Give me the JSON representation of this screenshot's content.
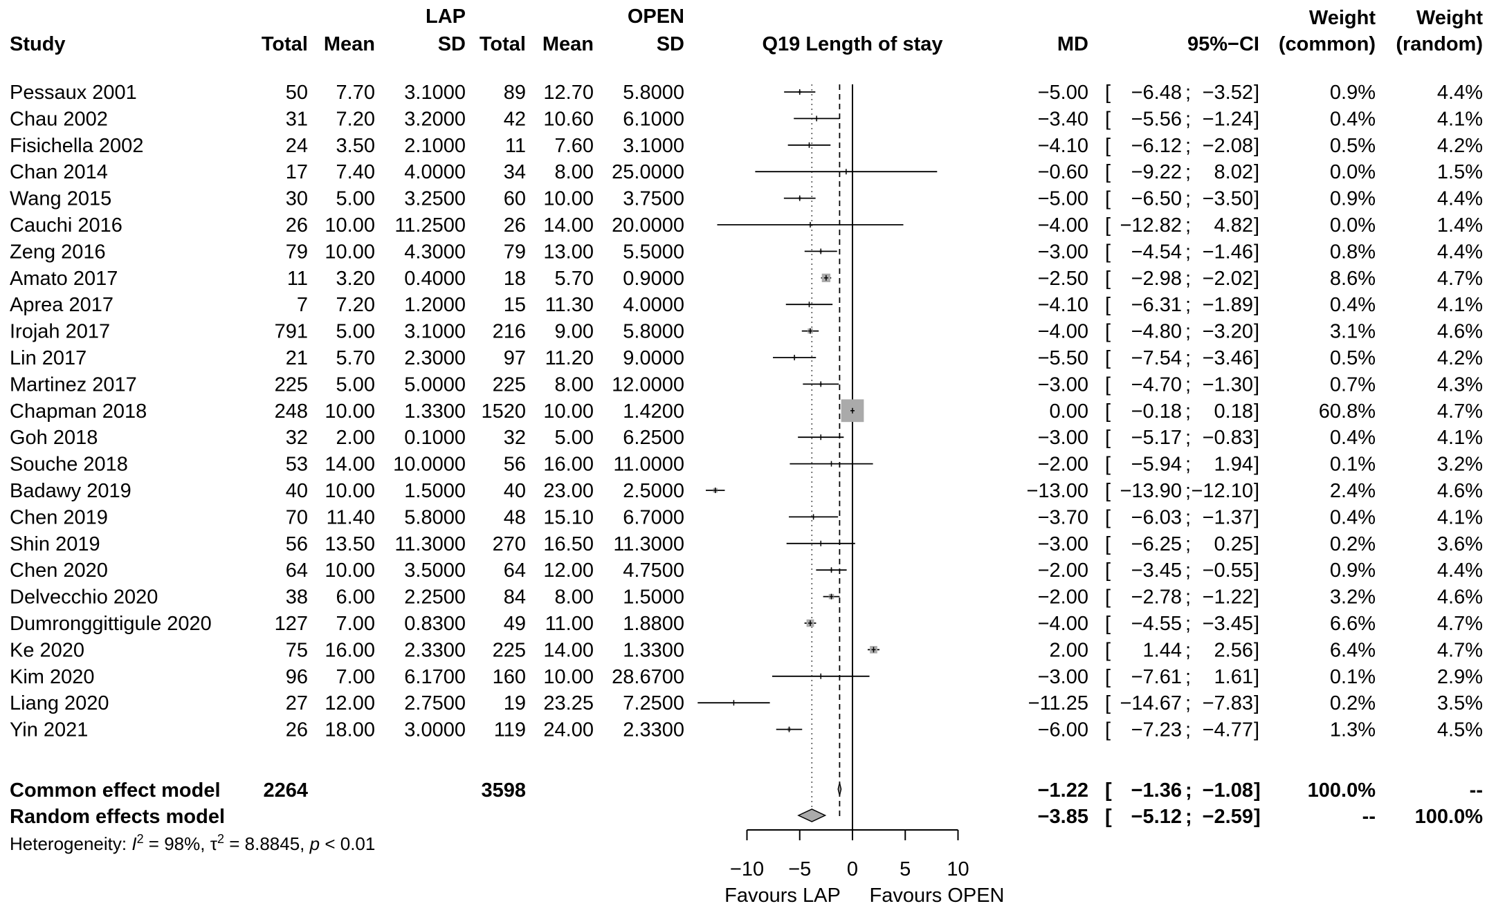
{
  "plot_title": "Q19 Length of stay",
  "headers": {
    "study": "Study",
    "lap": "LAP",
    "open": "OPEN",
    "total": "Total",
    "mean": "Mean",
    "sd": "SD",
    "md": "MD",
    "ci": "95%−CI",
    "weight": "Weight",
    "weight_common": "(common)",
    "weight_random": "(random)"
  },
  "studies": [
    {
      "name": "Pessaux 2001",
      "lap_total": "50",
      "lap_mean": "7.70",
      "lap_sd": "3.1000",
      "open_total": "89",
      "open_mean": "12.70",
      "open_sd": "5.8000",
      "md": "−5.00",
      "ci_lo": "−6.48",
      "ci_hi": "−3.52",
      "w_common": "0.9%",
      "w_random": "4.4%"
    },
    {
      "name": "Chau 2002",
      "lap_total": "31",
      "lap_mean": "7.20",
      "lap_sd": "3.2000",
      "open_total": "42",
      "open_mean": "10.60",
      "open_sd": "6.1000",
      "md": "−3.40",
      "ci_lo": "−5.56",
      "ci_hi": "−1.24",
      "w_common": "0.4%",
      "w_random": "4.1%"
    },
    {
      "name": "Fisichella 2002",
      "lap_total": "24",
      "lap_mean": "3.50",
      "lap_sd": "2.1000",
      "open_total": "11",
      "open_mean": "7.60",
      "open_sd": "3.1000",
      "md": "−4.10",
      "ci_lo": "−6.12",
      "ci_hi": "−2.08",
      "w_common": "0.5%",
      "w_random": "4.2%"
    },
    {
      "name": "Chan 2014",
      "lap_total": "17",
      "lap_mean": "7.40",
      "lap_sd": "4.0000",
      "open_total": "34",
      "open_mean": "8.00",
      "open_sd": "25.0000",
      "md": "−0.60",
      "ci_lo": "−9.22",
      "ci_hi": "8.02",
      "w_common": "0.0%",
      "w_random": "1.5%"
    },
    {
      "name": "Wang 2015",
      "lap_total": "30",
      "lap_mean": "5.00",
      "lap_sd": "3.2500",
      "open_total": "60",
      "open_mean": "10.00",
      "open_sd": "3.7500",
      "md": "−5.00",
      "ci_lo": "−6.50",
      "ci_hi": "−3.50",
      "w_common": "0.9%",
      "w_random": "4.4%"
    },
    {
      "name": "Cauchi 2016",
      "lap_total": "26",
      "lap_mean": "10.00",
      "lap_sd": "11.2500",
      "open_total": "26",
      "open_mean": "14.00",
      "open_sd": "20.0000",
      "md": "−4.00",
      "ci_lo": "−12.82",
      "ci_hi": "4.82",
      "w_common": "0.0%",
      "w_random": "1.4%"
    },
    {
      "name": "Zeng 2016",
      "lap_total": "79",
      "lap_mean": "10.00",
      "lap_sd": "4.3000",
      "open_total": "79",
      "open_mean": "13.00",
      "open_sd": "5.5000",
      "md": "−3.00",
      "ci_lo": "−4.54",
      "ci_hi": "−1.46",
      "w_common": "0.8%",
      "w_random": "4.4%"
    },
    {
      "name": "Amato 2017",
      "lap_total": "11",
      "lap_mean": "3.20",
      "lap_sd": "0.4000",
      "open_total": "18",
      "open_mean": "5.70",
      "open_sd": "0.9000",
      "md": "−2.50",
      "ci_lo": "−2.98",
      "ci_hi": "−2.02",
      "w_common": "8.6%",
      "w_random": "4.7%"
    },
    {
      "name": "Aprea 2017",
      "lap_total": "7",
      "lap_mean": "7.20",
      "lap_sd": "1.2000",
      "open_total": "15",
      "open_mean": "11.30",
      "open_sd": "4.0000",
      "md": "−4.10",
      "ci_lo": "−6.31",
      "ci_hi": "−1.89",
      "w_common": "0.4%",
      "w_random": "4.1%"
    },
    {
      "name": "Irojah 2017",
      "lap_total": "791",
      "lap_mean": "5.00",
      "lap_sd": "3.1000",
      "open_total": "216",
      "open_mean": "9.00",
      "open_sd": "5.8000",
      "md": "−4.00",
      "ci_lo": "−4.80",
      "ci_hi": "−3.20",
      "w_common": "3.1%",
      "w_random": "4.6%"
    },
    {
      "name": "Lin 2017",
      "lap_total": "21",
      "lap_mean": "5.70",
      "lap_sd": "2.3000",
      "open_total": "97",
      "open_mean": "11.20",
      "open_sd": "9.0000",
      "md": "−5.50",
      "ci_lo": "−7.54",
      "ci_hi": "−3.46",
      "w_common": "0.5%",
      "w_random": "4.2%"
    },
    {
      "name": "Martinez 2017",
      "lap_total": "225",
      "lap_mean": "5.00",
      "lap_sd": "5.0000",
      "open_total": "225",
      "open_mean": "8.00",
      "open_sd": "12.0000",
      "md": "−3.00",
      "ci_lo": "−4.70",
      "ci_hi": "−1.30",
      "w_common": "0.7%",
      "w_random": "4.3%"
    },
    {
      "name": "Chapman 2018",
      "lap_total": "248",
      "lap_mean": "10.00",
      "lap_sd": "1.3300",
      "open_total": "1520",
      "open_mean": "10.00",
      "open_sd": "1.4200",
      "md": "0.00",
      "ci_lo": "−0.18",
      "ci_hi": "0.18",
      "w_common": "60.8%",
      "w_random": "4.7%"
    },
    {
      "name": "Goh 2018",
      "lap_total": "32",
      "lap_mean": "2.00",
      "lap_sd": "0.1000",
      "open_total": "32",
      "open_mean": "5.00",
      "open_sd": "6.2500",
      "md": "−3.00",
      "ci_lo": "−5.17",
      "ci_hi": "−0.83",
      "w_common": "0.4%",
      "w_random": "4.1%"
    },
    {
      "name": "Souche 2018",
      "lap_total": "53",
      "lap_mean": "14.00",
      "lap_sd": "10.0000",
      "open_total": "56",
      "open_mean": "16.00",
      "open_sd": "11.0000",
      "md": "−2.00",
      "ci_lo": "−5.94",
      "ci_hi": "1.94",
      "w_common": "0.1%",
      "w_random": "3.2%"
    },
    {
      "name": "Badawy 2019",
      "lap_total": "40",
      "lap_mean": "10.00",
      "lap_sd": "1.5000",
      "open_total": "40",
      "open_mean": "23.00",
      "open_sd": "2.5000",
      "md": "−13.00",
      "ci_lo": "−13.90",
      "ci_hi": "−12.10",
      "w_common": "2.4%",
      "w_random": "4.6%"
    },
    {
      "name": "Chen 2019",
      "lap_total": "70",
      "lap_mean": "11.40",
      "lap_sd": "5.8000",
      "open_total": "48",
      "open_mean": "15.10",
      "open_sd": "6.7000",
      "md": "−3.70",
      "ci_lo": "−6.03",
      "ci_hi": "−1.37",
      "w_common": "0.4%",
      "w_random": "4.1%"
    },
    {
      "name": "Shin 2019",
      "lap_total": "56",
      "lap_mean": "13.50",
      "lap_sd": "11.3000",
      "open_total": "270",
      "open_mean": "16.50",
      "open_sd": "11.3000",
      "md": "−3.00",
      "ci_lo": "−6.25",
      "ci_hi": "0.25",
      "w_common": "0.2%",
      "w_random": "3.6%"
    },
    {
      "name": "Chen 2020",
      "lap_total": "64",
      "lap_mean": "10.00",
      "lap_sd": "3.5000",
      "open_total": "64",
      "open_mean": "12.00",
      "open_sd": "4.7500",
      "md": "−2.00",
      "ci_lo": "−3.45",
      "ci_hi": "−0.55",
      "w_common": "0.9%",
      "w_random": "4.4%"
    },
    {
      "name": "Delvecchio 2020",
      "lap_total": "38",
      "lap_mean": "6.00",
      "lap_sd": "2.2500",
      "open_total": "84",
      "open_mean": "8.00",
      "open_sd": "1.5000",
      "md": "−2.00",
      "ci_lo": "−2.78",
      "ci_hi": "−1.22",
      "w_common": "3.2%",
      "w_random": "4.6%"
    },
    {
      "name": "Dumronggittigule 2020",
      "lap_total": "127",
      "lap_mean": "7.00",
      "lap_sd": "0.8300",
      "open_total": "49",
      "open_mean": "11.00",
      "open_sd": "1.8800",
      "md": "−4.00",
      "ci_lo": "−4.55",
      "ci_hi": "−3.45",
      "w_common": "6.6%",
      "w_random": "4.7%"
    },
    {
      "name": "Ke 2020",
      "lap_total": "75",
      "lap_mean": "16.00",
      "lap_sd": "2.3300",
      "open_total": "225",
      "open_mean": "14.00",
      "open_sd": "1.3300",
      "md": "2.00",
      "ci_lo": "1.44",
      "ci_hi": "2.56",
      "w_common": "6.4%",
      "w_random": "4.7%"
    },
    {
      "name": "Kim 2020",
      "lap_total": "96",
      "lap_mean": "7.00",
      "lap_sd": "6.1700",
      "open_total": "160",
      "open_mean": "10.00",
      "open_sd": "28.6700",
      "md": "−3.00",
      "ci_lo": "−7.61",
      "ci_hi": "1.61",
      "w_common": "0.1%",
      "w_random": "2.9%"
    },
    {
      "name": "Liang 2020",
      "lap_total": "27",
      "lap_mean": "12.00",
      "lap_sd": "2.7500",
      "open_total": "19",
      "open_mean": "23.25",
      "open_sd": "7.2500",
      "md": "−11.25",
      "ci_lo": "−14.67",
      "ci_hi": "−7.83",
      "w_common": "0.2%",
      "w_random": "3.5%"
    },
    {
      "name": "Yin 2021",
      "lap_total": "26",
      "lap_mean": "18.00",
      "lap_sd": "3.0000",
      "open_total": "119",
      "open_mean": "24.00",
      "open_sd": "2.3300",
      "md": "−6.00",
      "ci_lo": "−7.23",
      "ci_hi": "−4.77",
      "w_common": "1.3%",
      "w_random": "4.5%"
    }
  ],
  "common": {
    "label": "Common effect model",
    "lap_total": "2264",
    "open_total": "3598",
    "md": "−1.22",
    "ci_lo": "−1.36",
    "ci_hi": "−1.08",
    "w_common": "100.0%",
    "w_random": "--"
  },
  "random": {
    "label": "Random effects model",
    "md": "−3.85",
    "ci_lo": "−5.12",
    "ci_hi": "−2.59",
    "w_common": "--",
    "w_random": "100.0%"
  },
  "heterogeneity": {
    "prefix": "Heterogeneity: ",
    "i2": "98%",
    "tau2": "8.8845",
    "p": "< 0.01"
  },
  "axis": {
    "ticks": [
      -10,
      -5,
      0,
      5,
      10
    ],
    "tick_labels": [
      "−10",
      "−5",
      "0",
      "5",
      "10"
    ],
    "favours_left": "Favours LAP",
    "favours_right": "Favours OPEN"
  },
  "chart_data": {
    "type": "forest",
    "title": "Q19 Length of stay",
    "xlim": [
      -10,
      10
    ],
    "null_line": 0,
    "common_line": -1.22,
    "random_line": -3.85,
    "studies": [
      {
        "md": -5.0,
        "lo": -6.48,
        "hi": -3.52,
        "w": 0.9
      },
      {
        "md": -3.4,
        "lo": -5.56,
        "hi": -1.24,
        "w": 0.4
      },
      {
        "md": -4.1,
        "lo": -6.12,
        "hi": -2.08,
        "w": 0.5
      },
      {
        "md": -0.6,
        "lo": -9.22,
        "hi": 8.02,
        "w": 0.0
      },
      {
        "md": -5.0,
        "lo": -6.5,
        "hi": -3.5,
        "w": 0.9
      },
      {
        "md": -4.0,
        "lo": -12.82,
        "hi": 4.82,
        "w": 0.0
      },
      {
        "md": -3.0,
        "lo": -4.54,
        "hi": -1.46,
        "w": 0.8
      },
      {
        "md": -2.5,
        "lo": -2.98,
        "hi": -2.02,
        "w": 8.6
      },
      {
        "md": -4.1,
        "lo": -6.31,
        "hi": -1.89,
        "w": 0.4
      },
      {
        "md": -4.0,
        "lo": -4.8,
        "hi": -3.2,
        "w": 3.1
      },
      {
        "md": -5.5,
        "lo": -7.54,
        "hi": -3.46,
        "w": 0.5
      },
      {
        "md": -3.0,
        "lo": -4.7,
        "hi": -1.3,
        "w": 0.7
      },
      {
        "md": 0.0,
        "lo": -0.18,
        "hi": 0.18,
        "w": 60.8
      },
      {
        "md": -3.0,
        "lo": -5.17,
        "hi": -0.83,
        "w": 0.4
      },
      {
        "md": -2.0,
        "lo": -5.94,
        "hi": 1.94,
        "w": 0.1
      },
      {
        "md": -13.0,
        "lo": -13.9,
        "hi": -12.1,
        "w": 2.4
      },
      {
        "md": -3.7,
        "lo": -6.03,
        "hi": -1.37,
        "w": 0.4
      },
      {
        "md": -3.0,
        "lo": -6.25,
        "hi": 0.25,
        "w": 0.2
      },
      {
        "md": -2.0,
        "lo": -3.45,
        "hi": -0.55,
        "w": 0.9
      },
      {
        "md": -2.0,
        "lo": -2.78,
        "hi": -1.22,
        "w": 3.2
      },
      {
        "md": -4.0,
        "lo": -4.55,
        "hi": -3.45,
        "w": 6.6
      },
      {
        "md": 2.0,
        "lo": 1.44,
        "hi": 2.56,
        "w": 6.4
      },
      {
        "md": -3.0,
        "lo": -7.61,
        "hi": 1.61,
        "w": 0.1
      },
      {
        "md": -11.25,
        "lo": -14.67,
        "hi": -7.83,
        "w": 0.2
      },
      {
        "md": -6.0,
        "lo": -7.23,
        "hi": -4.77,
        "w": 1.3
      }
    ],
    "common": {
      "md": -1.22,
      "lo": -1.36,
      "hi": -1.08
    },
    "random": {
      "md": -3.85,
      "lo": -5.12,
      "hi": -2.59
    }
  }
}
